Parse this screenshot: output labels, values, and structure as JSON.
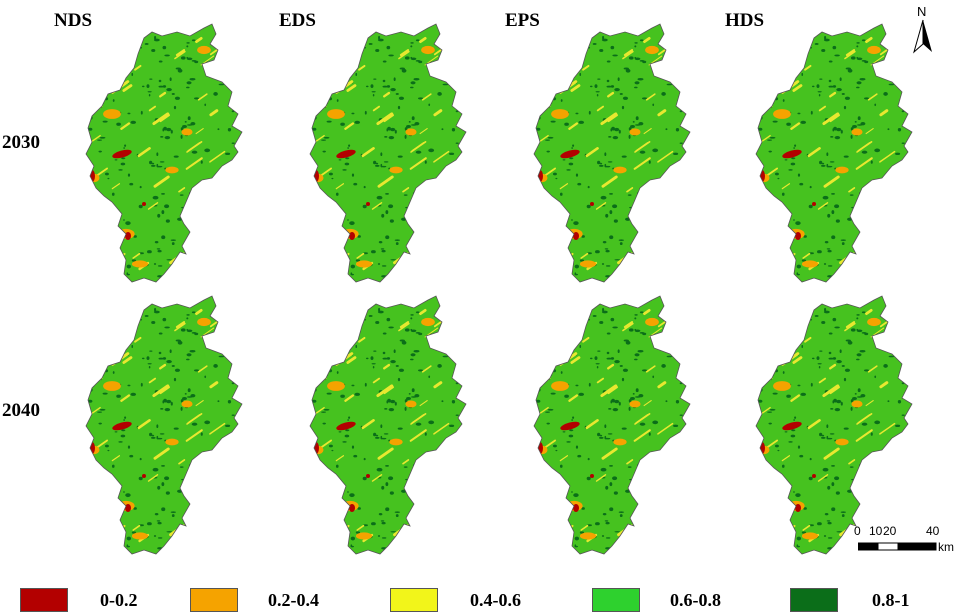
{
  "columns": [
    "NDS",
    "EDS",
    "EPS",
    "HDS"
  ],
  "rows": [
    "2030",
    "2040"
  ],
  "north_label": "N",
  "scale": {
    "ticks": [
      "0",
      "10",
      "20",
      "40"
    ],
    "unit": "km"
  },
  "legend": [
    {
      "label": "0-0.2",
      "color": "#b30000"
    },
    {
      "label": "0.2-0.4",
      "color": "#f5a300"
    },
    {
      "label": "0.4-0.6",
      "color": "#f2f51a"
    },
    {
      "label": "0.6-0.8",
      "color": "#2ed12e"
    },
    {
      "label": "0.8-1",
      "color": "#0b6e19"
    }
  ],
  "map_colors": {
    "base": "#46c21f",
    "dark": "#0b6e19",
    "yellow": "#e8e830",
    "orange": "#f5a300",
    "red": "#b30000"
  }
}
